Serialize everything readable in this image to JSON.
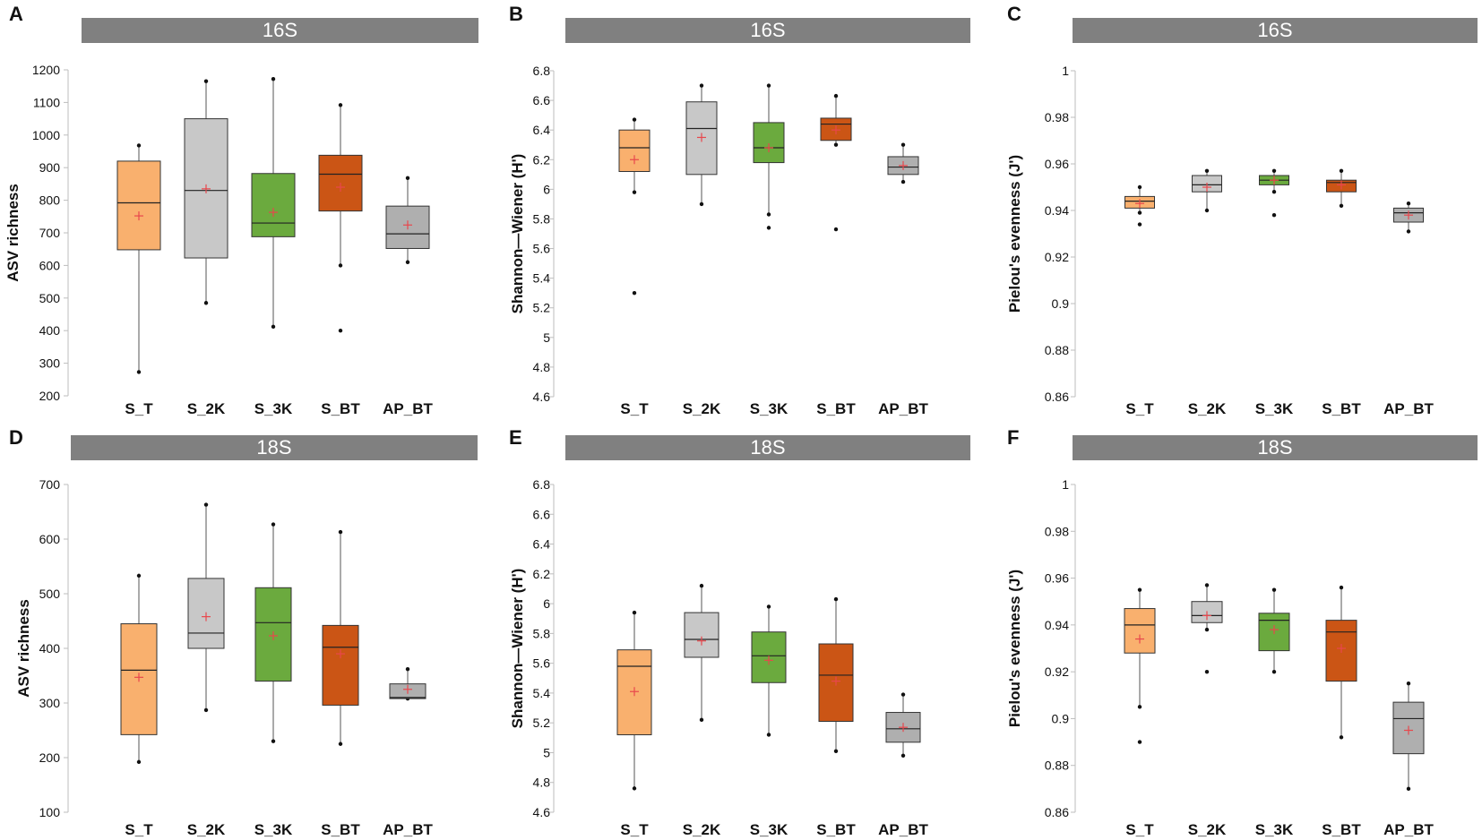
{
  "figure": {
    "background": "#ffffff",
    "banner_color": "#808080"
  },
  "chart_data": [
    {
      "panel": "A",
      "type": "boxplot",
      "banner": "16S",
      "ylabel": "ASV richness",
      "ylim": [
        200,
        1200
      ],
      "yticks": [
        200,
        300,
        400,
        500,
        600,
        700,
        800,
        900,
        1000,
        1100,
        1200
      ],
      "categories": [
        "S_T",
        "S_2K",
        "S_3K",
        "S_BT",
        "AP_BT"
      ],
      "colors": [
        "#F9B06E",
        "#C8C8C8",
        "#6BAA3E",
        "#CB5515",
        "#AFAFAF"
      ],
      "boxes": [
        {
          "min": 273,
          "q1": 648,
          "median": 792,
          "q3": 920,
          "max": 968,
          "mean": 752,
          "outliers": []
        },
        {
          "min": 485,
          "q1": 623,
          "median": 830,
          "q3": 1050,
          "max": 1165,
          "mean": 835,
          "outliers": []
        },
        {
          "min": 412,
          "q1": 688,
          "median": 730,
          "q3": 882,
          "max": 1172,
          "mean": 763,
          "outliers": []
        },
        {
          "min": 600,
          "q1": 767,
          "median": 880,
          "q3": 938,
          "max": 1092,
          "mean": 840,
          "outliers": [
            400
          ]
        },
        {
          "min": 610,
          "q1": 652,
          "median": 697,
          "q3": 782,
          "max": 868,
          "mean": 724,
          "outliers": []
        }
      ]
    },
    {
      "panel": "B",
      "type": "boxplot",
      "banner": "16S",
      "ylabel": "Shannon—Wiener (H')",
      "ylim": [
        4.6,
        6.8
      ],
      "yticks": [
        4.6,
        4.8,
        5,
        5.2,
        5.4,
        5.6,
        5.8,
        6,
        6.2,
        6.4,
        6.6,
        6.8
      ],
      "categories": [
        "S_T",
        "S_2K",
        "S_3K",
        "S_BT",
        "AP_BT"
      ],
      "colors": [
        "#F9B06E",
        "#C8C8C8",
        "#6BAA3E",
        "#CB5515",
        "#AFAFAF"
      ],
      "boxes": [
        {
          "min": 5.98,
          "q1": 6.12,
          "median": 6.28,
          "q3": 6.4,
          "max": 6.47,
          "mean": 6.2,
          "outliers": [
            5.3
          ]
        },
        {
          "min": 5.9,
          "q1": 6.1,
          "median": 6.41,
          "q3": 6.59,
          "max": 6.7,
          "mean": 6.35,
          "outliers": []
        },
        {
          "min": 5.83,
          "q1": 6.18,
          "median": 6.28,
          "q3": 6.45,
          "max": 6.7,
          "mean": 6.28,
          "outliers": [
            5.74
          ]
        },
        {
          "min": 6.3,
          "q1": 6.33,
          "median": 6.44,
          "q3": 6.48,
          "max": 6.63,
          "mean": 6.4,
          "outliers": [
            5.73
          ]
        },
        {
          "min": 6.05,
          "q1": 6.1,
          "median": 6.15,
          "q3": 6.22,
          "max": 6.3,
          "mean": 6.16,
          "outliers": []
        }
      ]
    },
    {
      "panel": "C",
      "type": "boxplot",
      "banner": "16S",
      "ylabel": "Pielou's evenness (J')",
      "ylim": [
        0.86,
        1
      ],
      "yticks": [
        0.86,
        0.88,
        0.9,
        0.92,
        0.94,
        0.96,
        0.98,
        1
      ],
      "categories": [
        "S_T",
        "S_2K",
        "S_3K",
        "S_BT",
        "AP_BT"
      ],
      "colors": [
        "#F9B06E",
        "#C8C8C8",
        "#6BAA3E",
        "#CB5515",
        "#AFAFAF"
      ],
      "boxes": [
        {
          "min": 0.939,
          "q1": 0.941,
          "median": 0.944,
          "q3": 0.946,
          "max": 0.95,
          "mean": 0.943,
          "outliers": [
            0.934
          ]
        },
        {
          "min": 0.94,
          "q1": 0.948,
          "median": 0.951,
          "q3": 0.955,
          "max": 0.957,
          "mean": 0.95,
          "outliers": []
        },
        {
          "min": 0.948,
          "q1": 0.951,
          "median": 0.953,
          "q3": 0.955,
          "max": 0.957,
          "mean": 0.953,
          "outliers": [
            0.938
          ]
        },
        {
          "min": 0.942,
          "q1": 0.948,
          "median": 0.952,
          "q3": 0.953,
          "max": 0.957,
          "mean": 0.951,
          "outliers": []
        },
        {
          "min": 0.931,
          "q1": 0.935,
          "median": 0.939,
          "q3": 0.941,
          "max": 0.943,
          "mean": 0.938,
          "outliers": []
        }
      ]
    },
    {
      "panel": "D",
      "type": "boxplot",
      "banner": "18S",
      "ylabel": "ASV richness",
      "ylim": [
        100,
        700
      ],
      "yticks": [
        100,
        200,
        300,
        400,
        500,
        600,
        700
      ],
      "categories": [
        "S_T",
        "S_2K",
        "S_3K",
        "S_BT",
        "AP_BT"
      ],
      "colors": [
        "#F9B06E",
        "#C8C8C8",
        "#6BAA3E",
        "#CB5515",
        "#AFAFAF"
      ],
      "boxes": [
        {
          "min": 192,
          "q1": 242,
          "median": 360,
          "q3": 445,
          "max": 533,
          "mean": 347,
          "outliers": []
        },
        {
          "min": 287,
          "q1": 400,
          "median": 428,
          "q3": 528,
          "max": 663,
          "mean": 458,
          "outliers": []
        },
        {
          "min": 230,
          "q1": 340,
          "median": 447,
          "q3": 511,
          "max": 627,
          "mean": 423,
          "outliers": []
        },
        {
          "min": 225,
          "q1": 296,
          "median": 402,
          "q3": 442,
          "max": 613,
          "mean": 390,
          "outliers": []
        },
        {
          "min": 308,
          "q1": 308,
          "median": 310,
          "q3": 335,
          "max": 362,
          "mean": 325,
          "outliers": []
        }
      ]
    },
    {
      "panel": "E",
      "type": "boxplot",
      "banner": "18S",
      "ylabel": "Shannon—Wiener (H')",
      "ylim": [
        4.6,
        6.8
      ],
      "yticks": [
        4.6,
        4.8,
        5,
        5.2,
        5.4,
        5.6,
        5.8,
        6,
        6.2,
        6.4,
        6.6,
        6.8
      ],
      "categories": [
        "S_T",
        "S_2K",
        "S_3K",
        "S_BT",
        "AP_BT"
      ],
      "colors": [
        "#F9B06E",
        "#C8C8C8",
        "#6BAA3E",
        "#CB5515",
        "#AFAFAF"
      ],
      "boxes": [
        {
          "min": 4.76,
          "q1": 5.12,
          "median": 5.58,
          "q3": 5.69,
          "max": 5.94,
          "mean": 5.41,
          "outliers": []
        },
        {
          "min": 5.22,
          "q1": 5.64,
          "median": 5.76,
          "q3": 5.94,
          "max": 6.12,
          "mean": 5.75,
          "outliers": []
        },
        {
          "min": 5.12,
          "q1": 5.47,
          "median": 5.65,
          "q3": 5.81,
          "max": 5.98,
          "mean": 5.62,
          "outliers": []
        },
        {
          "min": 5.01,
          "q1": 5.21,
          "median": 5.52,
          "q3": 5.73,
          "max": 6.03,
          "mean": 5.48,
          "outliers": []
        },
        {
          "min": 4.98,
          "q1": 5.07,
          "median": 5.16,
          "q3": 5.27,
          "max": 5.39,
          "mean": 5.17,
          "outliers": []
        }
      ]
    },
    {
      "panel": "F",
      "type": "boxplot",
      "banner": "18S",
      "ylabel": "Pielou's evenness (J')",
      "ylim": [
        0.86,
        1
      ],
      "yticks": [
        0.86,
        0.88,
        0.9,
        0.92,
        0.94,
        0.96,
        0.98,
        1
      ],
      "categories": [
        "S_T",
        "S_2K",
        "S_3K",
        "S_BT",
        "AP_BT"
      ],
      "colors": [
        "#F9B06E",
        "#C8C8C8",
        "#6BAA3E",
        "#CB5515",
        "#AFAFAF"
      ],
      "boxes": [
        {
          "min": 0.905,
          "q1": 0.928,
          "median": 0.94,
          "q3": 0.947,
          "max": 0.955,
          "mean": 0.934,
          "outliers": [
            0.89
          ]
        },
        {
          "min": 0.938,
          "q1": 0.941,
          "median": 0.944,
          "q3": 0.95,
          "max": 0.957,
          "mean": 0.944,
          "outliers": [
            0.92
          ]
        },
        {
          "min": 0.92,
          "q1": 0.929,
          "median": 0.942,
          "q3": 0.945,
          "max": 0.955,
          "mean": 0.938,
          "outliers": []
        },
        {
          "min": 0.892,
          "q1": 0.916,
          "median": 0.937,
          "q3": 0.942,
          "max": 0.956,
          "mean": 0.93,
          "outliers": []
        },
        {
          "min": 0.87,
          "q1": 0.885,
          "median": 0.9,
          "q3": 0.907,
          "max": 0.915,
          "mean": 0.895,
          "outliers": []
        }
      ]
    }
  ]
}
